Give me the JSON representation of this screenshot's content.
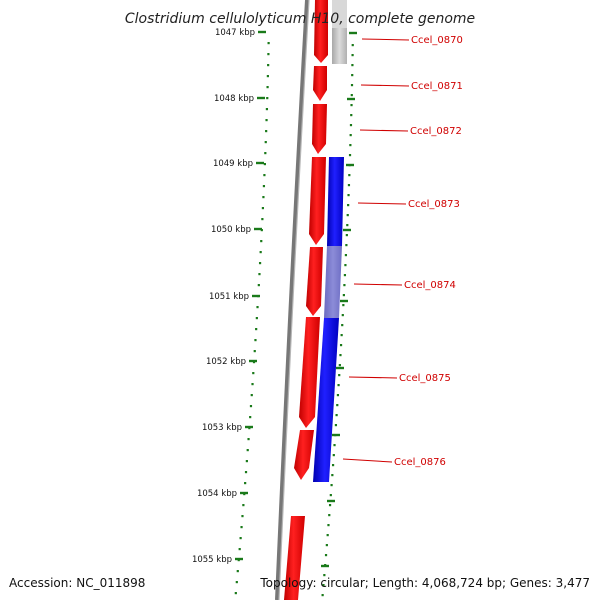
{
  "title": "Clostridium cellulolyticum H10, complete genome",
  "footer": {
    "accession": "Accession: NC_011898",
    "summary": "Topology: circular; Length: 4,068,724 bp; Genes: 3,477"
  },
  "ruler_labels": [
    "1047 kbp",
    "1048 kbp",
    "1049 kbp",
    "1050 kbp",
    "1051 kbp",
    "1052 kbp",
    "1053 kbp",
    "1054 kbp",
    "1055 kbp"
  ],
  "genes": [
    "Ccel_0870",
    "Ccel_0871",
    "Ccel_0872",
    "Ccel_0873",
    "Ccel_0874",
    "Ccel_0875",
    "Ccel_0876"
  ],
  "colors": {
    "forward": "#ff0000",
    "reverse": "#0000ee",
    "pale": "#c0c0c0",
    "faded_reverse": "#7777cc",
    "label": "#d00000",
    "ruler": "#1a7a1a",
    "backbone": "#777777"
  }
}
